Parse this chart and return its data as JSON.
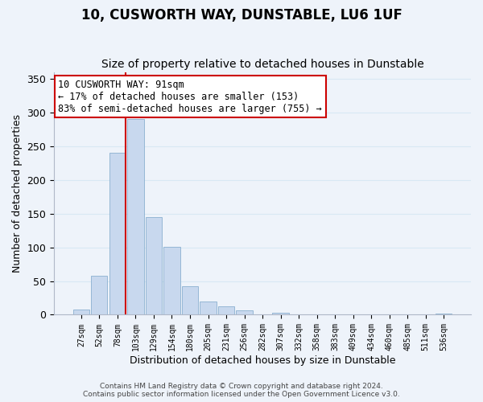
{
  "title": "10, CUSWORTH WAY, DUNSTABLE, LU6 1UF",
  "subtitle": "Size of property relative to detached houses in Dunstable",
  "xlabel": "Distribution of detached houses by size in Dunstable",
  "ylabel": "Number of detached properties",
  "bin_labels": [
    "27sqm",
    "52sqm",
    "78sqm",
    "103sqm",
    "129sqm",
    "154sqm",
    "180sqm",
    "205sqm",
    "231sqm",
    "256sqm",
    "282sqm",
    "307sqm",
    "332sqm",
    "358sqm",
    "383sqm",
    "409sqm",
    "434sqm",
    "460sqm",
    "485sqm",
    "511sqm",
    "536sqm"
  ],
  "bar_values": [
    8,
    58,
    240,
    290,
    145,
    101,
    42,
    20,
    12,
    6,
    0,
    3,
    0,
    0,
    0,
    0,
    0,
    0,
    0,
    0,
    2
  ],
  "bar_color": "#c8d8ee",
  "bar_edge_color": "#8ab0d0",
  "grid_color": "#d8e8f4",
  "vline_color": "#cc0000",
  "annotation_text": "10 CUSWORTH WAY: 91sqm\n← 17% of detached houses are smaller (153)\n83% of semi-detached houses are larger (755) →",
  "annotation_box_color": "#ffffff",
  "annotation_box_edge_color": "#cc0000",
  "ylim": [
    0,
    360
  ],
  "yticks": [
    0,
    50,
    100,
    150,
    200,
    250,
    300,
    350
  ],
  "footer_line1": "Contains HM Land Registry data © Crown copyright and database right 2024.",
  "footer_line2": "Contains public sector information licensed under the Open Government Licence v3.0.",
  "bg_color": "#eef3fa",
  "title_fontsize": 12,
  "subtitle_fontsize": 10
}
